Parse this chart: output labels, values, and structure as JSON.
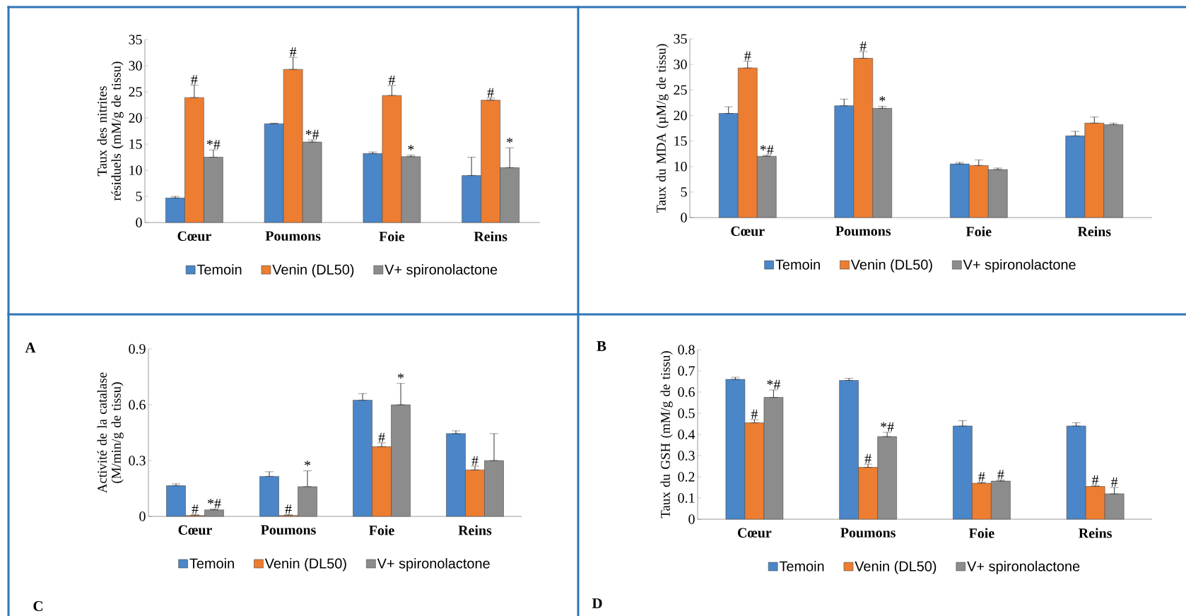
{
  "chart_data": [
    {
      "type": "bar",
      "ylabel": "Taux des nitrites résiduels (mM/g de tissu)",
      "categories": [
        "Cœur",
        "Poumons",
        "Foie",
        "Reins"
      ],
      "ylim": [
        0,
        35
      ],
      "yticks": [
        0,
        5,
        10,
        15,
        20,
        25,
        30,
        35
      ],
      "legend": "bottom",
      "series": [
        {
          "name": "Temoin",
          "color": "#4a86c8",
          "values": [
            4.7,
            18.9,
            13.2,
            9.0
          ],
          "errors": [
            [
              4.7,
              5.0
            ],
            [
              18.9,
              19.0
            ],
            [
              13.2,
              13.5
            ],
            [
              9.0,
              12.5
            ]
          ]
        },
        {
          "name": "Venin (DL50)",
          "color": "#ed7d31",
          "values": [
            23.9,
            29.3,
            24.3,
            23.4
          ],
          "errors": [
            [
              23.9,
              26.3
            ],
            [
              29.3,
              31.6
            ],
            [
              24.3,
              26.2
            ],
            [
              23.4,
              23.8
            ]
          ]
        },
        {
          "name": "V+ spironolactone",
          "color": "#8c8c8c",
          "values": [
            12.5,
            15.4,
            12.6,
            10.5
          ],
          "errors": [
            [
              12.5,
              13.9
            ],
            [
              15.4,
              15.8
            ],
            [
              12.6,
              12.9
            ],
            [
              10.5,
              14.3
            ]
          ]
        }
      ],
      "annotations": [
        {
          "text": "#",
          "x": "Cœur",
          "y": 26.3
        },
        {
          "text": "#",
          "x": "Poumons",
          "y": 31.6
        },
        {
          "text": "#",
          "x": "Foie",
          "y": 26.2
        },
        {
          "text": "#",
          "x": "Reins",
          "y": 23.8
        },
        "*#",
        "*#",
        "*",
        "*",
        "A"
      ]
    },
    {
      "type": "bar",
      "ylabel": "Taux du MDA (µM/g de tissu)",
      "categories": [
        "Cœur",
        "Poumons",
        "Foie",
        "Reins"
      ],
      "ylim": [
        0,
        35
      ],
      "yticks": [
        0,
        5,
        10,
        15,
        20,
        25,
        30,
        35
      ],
      "legend": "bottom",
      "series": [
        {
          "name": "Temoin",
          "color": "#4a86c8",
          "values": [
            20.4,
            21.9,
            10.5,
            16.0
          ],
          "errors": [
            [
              20.4,
              21.7
            ],
            [
              21.9,
              23.2
            ],
            [
              10.5,
              10.8
            ],
            [
              16.0,
              16.9
            ]
          ]
        },
        {
          "name": "Venin (DL50)",
          "color": "#ed7d31",
          "values": [
            29.3,
            31.2,
            10.2,
            18.5
          ],
          "errors": [
            [
              29.3,
              30.6
            ],
            [
              31.2,
              32.5
            ],
            [
              10.2,
              11.3
            ],
            [
              18.5,
              19.7
            ]
          ]
        },
        {
          "name": "V+ spironolactone",
          "color": "#8c8c8c",
          "values": [
            12.0,
            21.4,
            9.4,
            18.2
          ],
          "errors": [
            [
              12.0,
              12.2
            ],
            [
              21.4,
              21.8
            ],
            [
              9.4,
              9.7
            ],
            [
              18.2,
              18.5
            ]
          ]
        }
      ],
      "annotations": [
        {
          "text": "#",
          "x": "Cœur",
          "y": 30.6
        },
        {
          "text": "#",
          "x": "Poumons",
          "y": 32.5
        },
        "*#",
        "*",
        "B"
      ]
    },
    {
      "type": "bar",
      "ylabel": "Activité de la catalase (M/min/g de tissu)",
      "categories": [
        "Cœur",
        "Poumons",
        "Foie",
        "Reins"
      ],
      "ylim": [
        0,
        0.9
      ],
      "yticks": [
        0,
        0.3,
        0.6,
        0.9
      ],
      "legend": "bottom",
      "series": [
        {
          "name": "Temoin",
          "color": "#4a86c8",
          "values": [
            0.165,
            0.215,
            0.625,
            0.445
          ],
          "errors": [
            [
              0.165,
              0.175
            ],
            [
              0.215,
              0.24
            ],
            [
              0.625,
              0.66
            ],
            [
              0.445,
              0.46
            ]
          ]
        },
        {
          "name": "Venin (DL50)",
          "color": "#ed7d31",
          "values": [
            0.005,
            0.005,
            0.375,
            0.25
          ],
          "errors": [
            [
              0.005,
              0.01
            ],
            [
              0.005,
              0.01
            ],
            [
              0.375,
              0.395
            ],
            [
              0.25,
              0.27
            ]
          ]
        },
        {
          "name": "V+ spironolactone",
          "color": "#8c8c8c",
          "values": [
            0.035,
            0.16,
            0.6,
            0.3
          ],
          "errors": [
            [
              0.035,
              0.04
            ],
            [
              0.16,
              0.245
            ],
            [
              0.6,
              0.715
            ],
            [
              0.3,
              0.445
            ]
          ]
        }
      ],
      "annotations": [
        {
          "text": "#",
          "x": "Cœur",
          "y": 0.01
        },
        {
          "text": "#",
          "x": "Poumons",
          "y": 0.01
        },
        {
          "text": "#",
          "x": "Foie",
          "y": 0.395
        },
        {
          "text": "#",
          "x": "Reins",
          "y": 0.27
        },
        "*#",
        "*",
        "*",
        "C"
      ]
    },
    {
      "type": "bar",
      "ylabel": "Taux du GSH (mM/g de tissu)",
      "categories": [
        "Cœur",
        "Poumons",
        "Foie",
        "Reins"
      ],
      "ylim": [
        0,
        0.8
      ],
      "yticks": [
        0,
        0.1,
        0.2,
        0.3,
        0.4,
        0.5,
        0.6,
        0.7,
        0.8
      ],
      "legend": "bottom",
      "series": [
        {
          "name": "Temoin",
          "color": "#4a86c8",
          "values": [
            0.66,
            0.655,
            0.44,
            0.44
          ],
          "errors": [
            [
              0.66,
              0.67
            ],
            [
              0.655,
              0.665
            ],
            [
              0.44,
              0.465
            ],
            [
              0.44,
              0.455
            ]
          ]
        },
        {
          "name": "Venin (DL50)",
          "color": "#ed7d31",
          "values": [
            0.455,
            0.245,
            0.17,
            0.155
          ],
          "errors": [
            [
              0.455,
              0.47
            ],
            [
              0.245,
              0.26
            ],
            [
              0.17,
              0.175
            ],
            [
              0.155,
              0.16
            ]
          ]
        },
        {
          "name": "V+ spironolactone",
          "color": "#8c8c8c",
          "values": [
            0.575,
            0.39,
            0.18,
            0.12
          ],
          "errors": [
            [
              0.575,
              0.61
            ],
            [
              0.39,
              0.41
            ],
            [
              0.18,
              0.185
            ],
            [
              0.12,
              0.15
            ]
          ]
        }
      ],
      "annotations": [
        {
          "text": "#",
          "x": "Cœur",
          "y": 0.47
        },
        {
          "text": "#",
          "x": "Poumons",
          "y": 0.26
        },
        {
          "text": "#",
          "x": "Foie",
          "y": 0.175
        },
        {
          "text": "#",
          "x": "Reins",
          "y": 0.16
        },
        "*#",
        "*#",
        "#",
        "#",
        "D"
      ]
    }
  ]
}
